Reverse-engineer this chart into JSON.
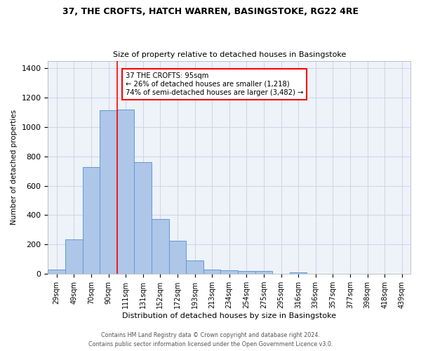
{
  "title": "37, THE CROFTS, HATCH WARREN, BASINGSTOKE, RG22 4RE",
  "subtitle": "Size of property relative to detached houses in Basingstoke",
  "xlabel": "Distribution of detached houses by size in Basingstoke",
  "ylabel": "Number of detached properties",
  "categories": [
    "29sqm",
    "49sqm",
    "70sqm",
    "90sqm",
    "111sqm",
    "131sqm",
    "152sqm",
    "172sqm",
    "193sqm",
    "213sqm",
    "234sqm",
    "254sqm",
    "275sqm",
    "295sqm",
    "316sqm",
    "336sqm",
    "357sqm",
    "377sqm",
    "398sqm",
    "418sqm",
    "439sqm"
  ],
  "bar_values": [
    30,
    235,
    725,
    1115,
    1120,
    760,
    375,
    225,
    90,
    30,
    25,
    22,
    18,
    0,
    12,
    0,
    0,
    0,
    0,
    0,
    0
  ],
  "bar_color": "#aec6e8",
  "bar_edge_color": "#5b9bd5",
  "vline_color": "red",
  "vline_x": 3.5,
  "annotation_text": "37 THE CROFTS: 95sqm\n← 26% of detached houses are smaller (1,218)\n74% of semi-detached houses are larger (3,482) →",
  "annotation_box_color": "white",
  "annotation_box_edge_color": "red",
  "ylim": [
    0,
    1450
  ],
  "background_color": "#eef2f9",
  "footer_line1": "Contains HM Land Registry data © Crown copyright and database right 2024.",
  "footer_line2": "Contains public sector information licensed under the Open Government Licence v3.0."
}
